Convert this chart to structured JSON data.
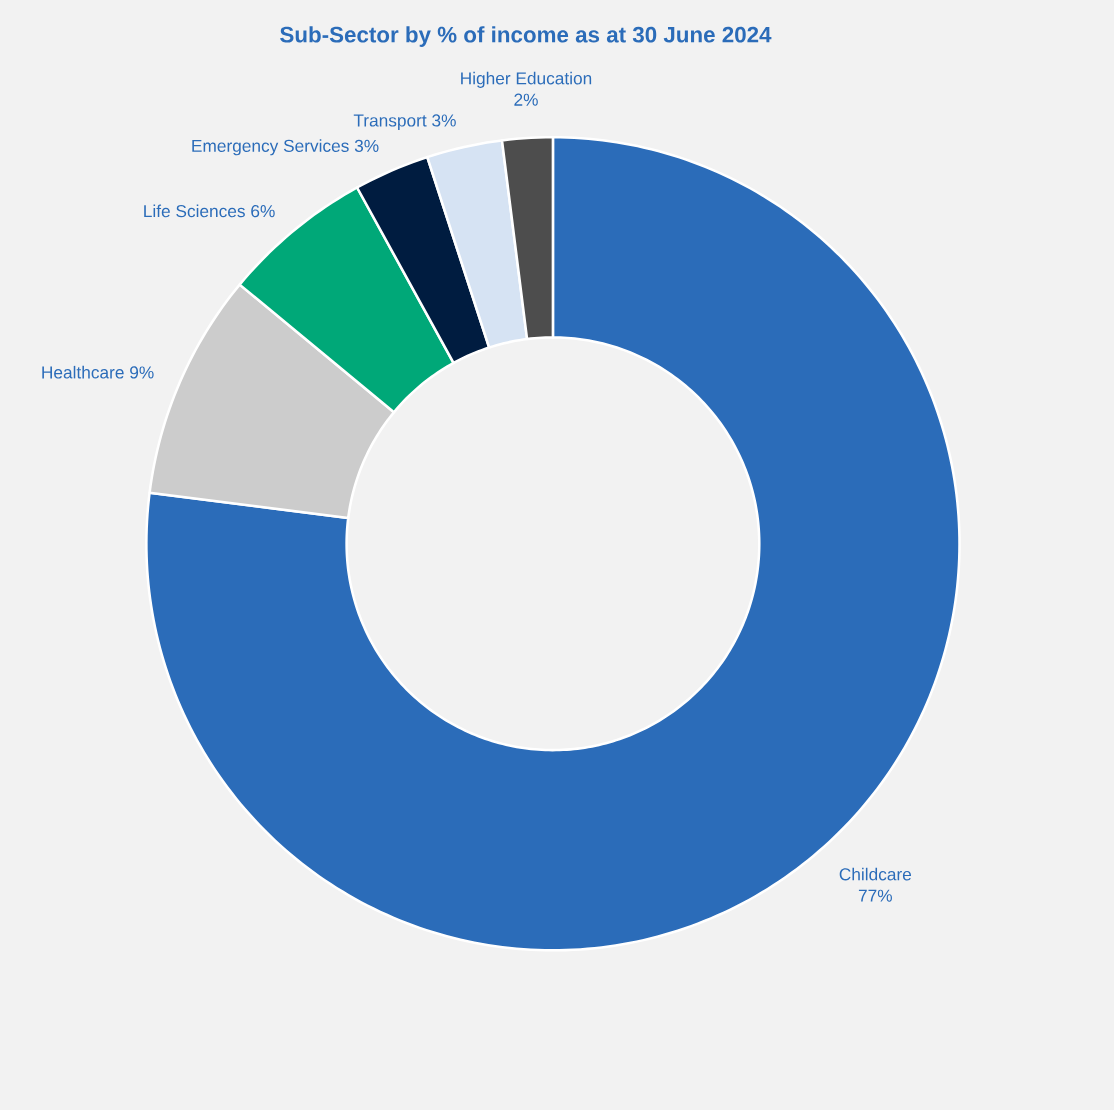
{
  "chart_data": {
    "type": "donut",
    "title": "Sub-Sector by % of income as at 30 June 2024",
    "categories": [
      "Childcare",
      "Healthcare",
      "Life Sciences",
      "Emergency Services",
      "Transport",
      "Higher Education"
    ],
    "values": [
      77,
      9,
      6,
      3,
      3,
      2
    ],
    "colors": [
      "#2b6cb9",
      "#cccccc",
      "#00a878",
      "#001c40",
      "#d6e3f3",
      "#4d4d4d"
    ],
    "value_labels": [
      "77%",
      "9%",
      "6%",
      "3%",
      "3%",
      "2%"
    ]
  }
}
